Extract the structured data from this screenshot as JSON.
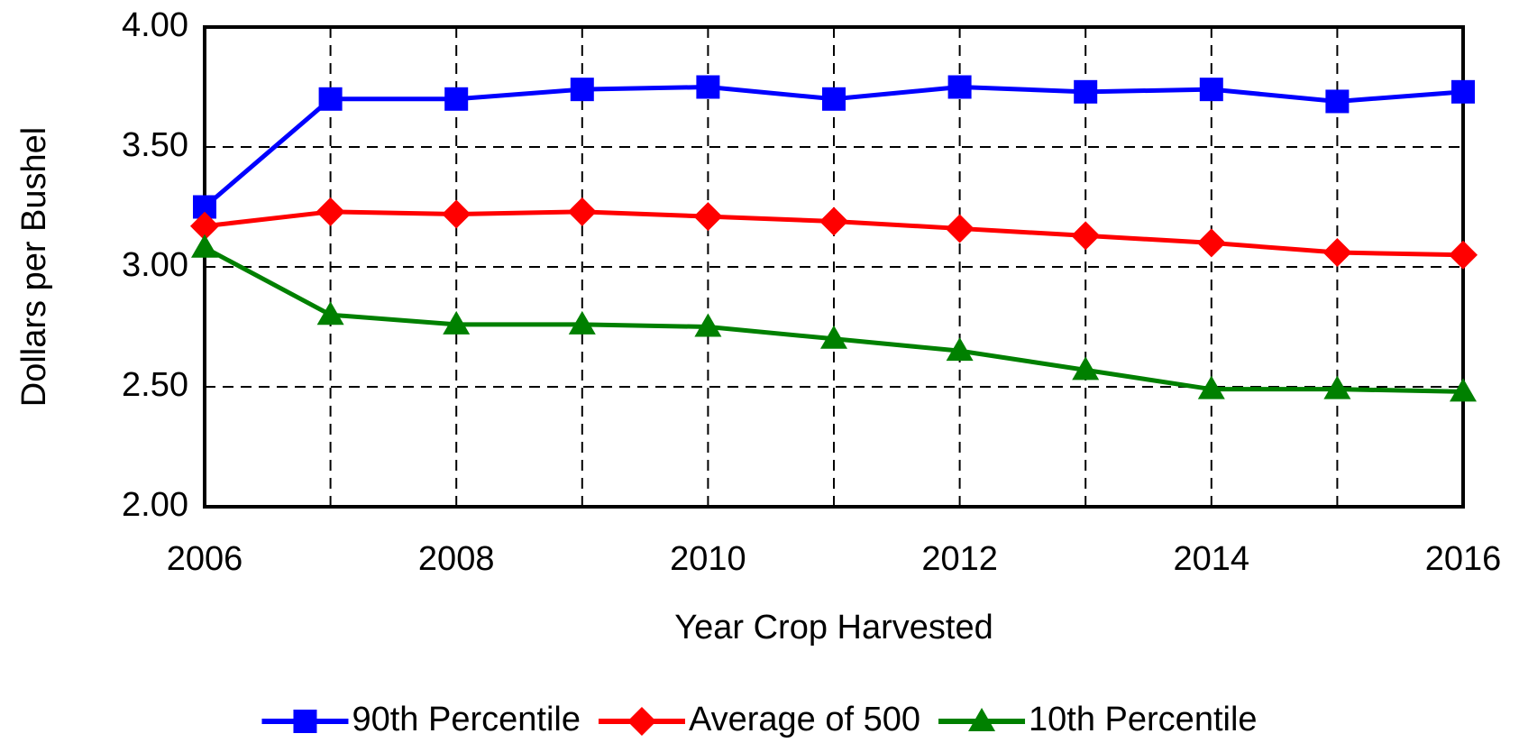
{
  "chart_data": {
    "type": "line",
    "x_label": "Year Crop Harvested",
    "y_label": "Dollars per Bushel",
    "x": [
      2006,
      2007,
      2008,
      2009,
      2010,
      2011,
      2012,
      2013,
      2014,
      2015,
      2016
    ],
    "series": [
      {
        "name": "90th Percentile",
        "color": "#0000ff",
        "marker": "square",
        "values": [
          3.25,
          3.7,
          3.7,
          3.74,
          3.75,
          3.7,
          3.75,
          3.73,
          3.74,
          3.69,
          3.73
        ]
      },
      {
        "name": "Average of 500",
        "color": "#ff0000",
        "marker": "diamond",
        "values": [
          3.17,
          3.23,
          3.22,
          3.23,
          3.21,
          3.19,
          3.16,
          3.13,
          3.1,
          3.06,
          3.05
        ]
      },
      {
        "name": "10th Percentile",
        "color": "#008000",
        "marker": "triangle",
        "values": [
          3.08,
          2.8,
          2.76,
          2.76,
          2.75,
          2.7,
          2.65,
          2.57,
          2.49,
          2.49,
          2.48
        ]
      }
    ],
    "xlim": [
      2006,
      2016
    ],
    "xticks": [
      2006,
      2008,
      2010,
      2012,
      2014,
      2016
    ],
    "ylim": [
      2,
      4
    ],
    "yticks": [
      {
        "value": 2,
        "label": "2.00"
      },
      {
        "value": 2.5,
        "label": "2.50"
      },
      {
        "value": 3,
        "label": "3.00"
      },
      {
        "value": 3.5,
        "label": "3.50"
      },
      {
        "value": 4,
        "label": "4.00"
      }
    ],
    "grid": true,
    "legend": "bottom"
  }
}
